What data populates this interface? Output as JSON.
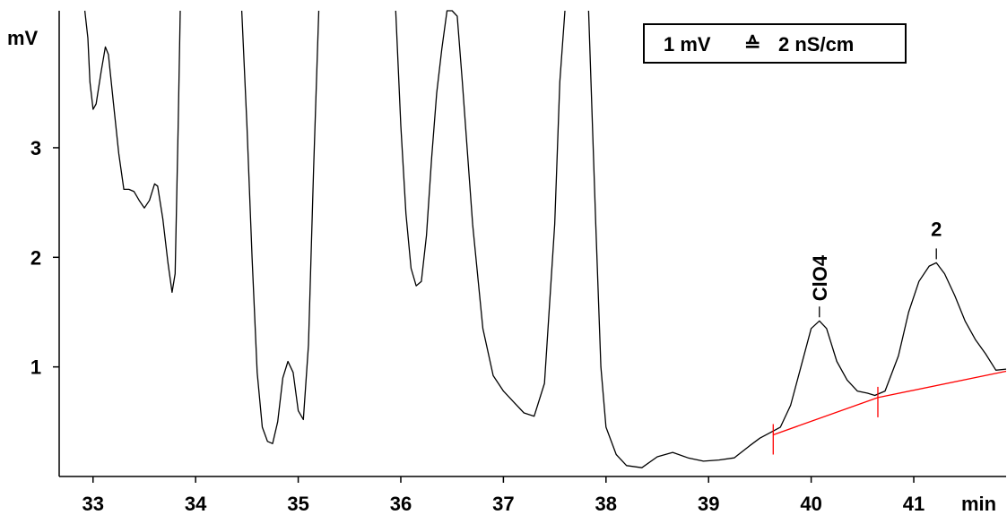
{
  "chart_data": {
    "type": "line",
    "title": "",
    "xlabel": "min",
    "ylabel": "mV",
    "xlim": [
      32.67,
      41.9
    ],
    "ylim": [
      0.0,
      4.25
    ],
    "xticks": [
      33,
      34,
      35,
      36,
      37,
      38,
      39,
      40,
      41
    ],
    "yticks": [
      1,
      2,
      3
    ],
    "grid": false,
    "legend": {
      "text_left": "1 mV",
      "symbol": "≙",
      "text_right": "2 nS/cm",
      "placement": "top-right"
    },
    "series": [
      {
        "color": "#000000",
        "points": [
          [
            32.92,
            4.25
          ],
          [
            32.95,
            4.0
          ],
          [
            32.97,
            3.6
          ],
          [
            33.0,
            3.35
          ],
          [
            33.03,
            3.4
          ],
          [
            33.08,
            3.7
          ],
          [
            33.12,
            3.92
          ],
          [
            33.15,
            3.85
          ],
          [
            33.2,
            3.4
          ],
          [
            33.25,
            2.95
          ],
          [
            33.3,
            2.62
          ],
          [
            33.35,
            2.62
          ],
          [
            33.4,
            2.6
          ],
          [
            33.45,
            2.52
          ],
          [
            33.5,
            2.45
          ],
          [
            33.55,
            2.52
          ],
          [
            33.6,
            2.67
          ],
          [
            33.63,
            2.65
          ],
          [
            33.68,
            2.35
          ],
          [
            33.73,
            1.95
          ],
          [
            33.77,
            1.68
          ],
          [
            33.8,
            1.85
          ],
          [
            33.83,
            3.2
          ],
          [
            33.85,
            4.25
          ]
        ]
      },
      {
        "color": "#000000",
        "points": [
          [
            34.45,
            4.25
          ],
          [
            34.5,
            3.2
          ],
          [
            34.55,
            2.0
          ],
          [
            34.6,
            0.95
          ],
          [
            34.65,
            0.45
          ],
          [
            34.7,
            0.32
          ],
          [
            34.75,
            0.3
          ],
          [
            34.8,
            0.5
          ],
          [
            34.85,
            0.9
          ],
          [
            34.9,
            1.05
          ],
          [
            34.95,
            0.95
          ],
          [
            35.0,
            0.6
          ],
          [
            35.05,
            0.52
          ],
          [
            35.1,
            1.2
          ],
          [
            35.15,
            2.8
          ],
          [
            35.2,
            4.25
          ]
        ]
      },
      {
        "color": "#000000",
        "points": [
          [
            35.95,
            4.25
          ],
          [
            36.0,
            3.2
          ],
          [
            36.05,
            2.4
          ],
          [
            36.1,
            1.9
          ],
          [
            36.15,
            1.74
          ],
          [
            36.2,
            1.78
          ],
          [
            36.25,
            2.2
          ],
          [
            36.3,
            2.9
          ],
          [
            36.35,
            3.5
          ],
          [
            36.4,
            3.9
          ],
          [
            36.45,
            4.25
          ],
          [
            36.5,
            4.25
          ],
          [
            36.55,
            4.2
          ],
          [
            36.6,
            3.6
          ],
          [
            36.7,
            2.3
          ],
          [
            36.8,
            1.35
          ],
          [
            36.9,
            0.92
          ],
          [
            37.0,
            0.78
          ],
          [
            37.1,
            0.68
          ],
          [
            37.2,
            0.58
          ],
          [
            37.3,
            0.55
          ],
          [
            37.4,
            0.85
          ],
          [
            37.5,
            2.3
          ],
          [
            37.55,
            3.6
          ],
          [
            37.6,
            4.25
          ]
        ]
      },
      {
        "color": "#000000",
        "points": [
          [
            37.83,
            4.25
          ],
          [
            37.9,
            2.3
          ],
          [
            37.95,
            1.0
          ],
          [
            38.0,
            0.45
          ],
          [
            38.1,
            0.2
          ],
          [
            38.2,
            0.1
          ],
          [
            38.35,
            0.08
          ],
          [
            38.5,
            0.18
          ],
          [
            38.65,
            0.22
          ],
          [
            38.8,
            0.17
          ],
          [
            38.95,
            0.14
          ],
          [
            39.1,
            0.15
          ],
          [
            39.25,
            0.17
          ],
          [
            39.4,
            0.28
          ],
          [
            39.5,
            0.35
          ],
          [
            39.6,
            0.4
          ],
          [
            39.7,
            0.45
          ],
          [
            39.8,
            0.65
          ],
          [
            39.9,
            1.0
          ],
          [
            40.0,
            1.35
          ],
          [
            40.08,
            1.42
          ],
          [
            40.15,
            1.35
          ],
          [
            40.25,
            1.05
          ],
          [
            40.35,
            0.88
          ],
          [
            40.45,
            0.78
          ],
          [
            40.55,
            0.76
          ],
          [
            40.62,
            0.74
          ],
          [
            40.72,
            0.78
          ],
          [
            40.85,
            1.1
          ],
          [
            40.95,
            1.5
          ],
          [
            41.05,
            1.78
          ],
          [
            41.15,
            1.92
          ],
          [
            41.22,
            1.95
          ],
          [
            41.3,
            1.85
          ],
          [
            41.4,
            1.65
          ],
          [
            41.5,
            1.42
          ],
          [
            41.6,
            1.25
          ],
          [
            41.7,
            1.12
          ],
          [
            41.8,
            0.97
          ],
          [
            41.9,
            0.98
          ]
        ]
      },
      {
        "color": "#ff0000",
        "points": [
          [
            39.63,
            0.38
          ],
          [
            40.65,
            0.72
          ],
          [
            41.9,
            0.96
          ]
        ]
      }
    ],
    "baseline_marks": [
      [
        39.63,
        0.38
      ],
      [
        40.65,
        0.72
      ]
    ],
    "annotations": [
      {
        "label": "ClO4",
        "x": 40.08,
        "y": 1.42,
        "rotate": true
      },
      {
        "label": "2",
        "x": 41.22,
        "y": 1.95,
        "rotate": false
      }
    ]
  },
  "colors": {
    "axis": "#000000",
    "trace": "#000000",
    "baseline": "#ff0000"
  }
}
